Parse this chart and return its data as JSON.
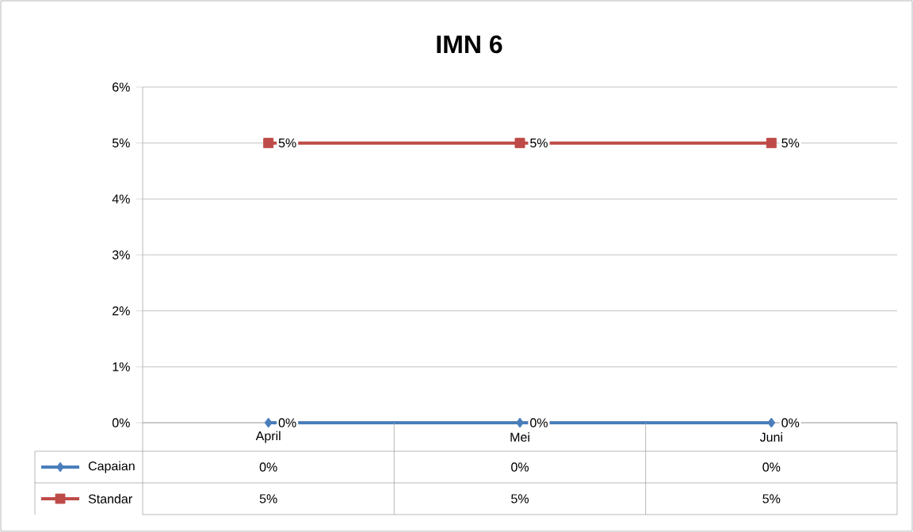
{
  "chart_data": {
    "type": "line",
    "title": "IMN 6",
    "categories": [
      "April",
      "Mei",
      "Juni"
    ],
    "series": [
      {
        "name": "Capaian",
        "color": "#4a7ebb",
        "marker": "diamond",
        "values": [
          0,
          0,
          0
        ],
        "value_labels": [
          "0%",
          "0%",
          "0%"
        ]
      },
      {
        "name": "Standar",
        "color": "#be4b48",
        "marker": "square",
        "values": [
          5,
          5,
          5
        ],
        "value_labels": [
          "5%",
          "5%",
          "5%"
        ]
      }
    ],
    "ylim": [
      0,
      6
    ],
    "yticks": [
      {
        "value": 0,
        "label": "0%"
      },
      {
        "value": 1,
        "label": "1%"
      },
      {
        "value": 2,
        "label": "2%"
      },
      {
        "value": 3,
        "label": "3%"
      },
      {
        "value": 4,
        "label": "4%"
      },
      {
        "value": 5,
        "label": "5%"
      },
      {
        "value": 6,
        "label": "6%"
      }
    ],
    "grid": "y",
    "legend": "bottom"
  }
}
